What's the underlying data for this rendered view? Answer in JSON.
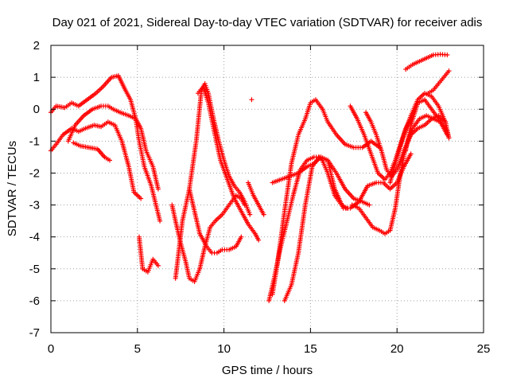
{
  "chart_data": {
    "type": "scatter",
    "title": "Day 021 of 2021, Sidereal Day-to-day VTEC variation (SDTVAR) for receiver adis",
    "xlabel": "GPS time / hours",
    "ylabel": "SDTVAR / TECUs",
    "xlim": [
      0,
      25
    ],
    "ylim": [
      -7,
      2
    ],
    "x_ticks": [
      "0",
      "5",
      "10",
      "15",
      "20",
      "25"
    ],
    "y_ticks": [
      "2",
      "1",
      "0",
      "-1",
      "-2",
      "-3",
      "-4",
      "-5",
      "-6",
      "-7"
    ],
    "grid": true,
    "legend": "none",
    "marker": "+",
    "color": "#ff0000",
    "series": [
      {
        "x": [
          0.0,
          0.3,
          0.7,
          1.2,
          1.6,
          2.0,
          2.5,
          2.9,
          3.3,
          3.7,
          4.1,
          4.5,
          4.8,
          5.2
        ],
        "y": [
          -1.3,
          -1.1,
          -0.8,
          -0.6,
          -0.7,
          -0.6,
          -0.5,
          -0.55,
          -0.4,
          -0.5,
          -1.0,
          -1.8,
          -2.6,
          -2.8
        ]
      },
      {
        "x": [
          0.0,
          0.3,
          0.8,
          1.2,
          1.6,
          2.1,
          2.6,
          3.0,
          3.5,
          3.9,
          4.3,
          4.6,
          4.9,
          5.1,
          5.4,
          5.8,
          6.3
        ],
        "y": [
          -0.1,
          0.1,
          0.05,
          0.2,
          0.1,
          0.3,
          0.5,
          0.7,
          1.0,
          1.05,
          0.6,
          0.3,
          -0.3,
          -1.0,
          -1.8,
          -2.4,
          -3.5
        ]
      },
      {
        "x": [
          1.0,
          1.4,
          1.9,
          2.4,
          2.9,
          3.3,
          3.6,
          4.0,
          4.5,
          4.9,
          5.2,
          5.5,
          5.9,
          6.2
        ],
        "y": [
          -1.0,
          -0.5,
          -0.2,
          0.0,
          0.1,
          0.1,
          0.0,
          -0.1,
          -0.2,
          -0.3,
          -0.6,
          -1.3,
          -1.8,
          -2.5
        ]
      },
      {
        "x": [
          1.3,
          1.7,
          2.2,
          2.7,
          3.1,
          3.4
        ],
        "y": [
          -1.05,
          -1.15,
          -1.2,
          -1.25,
          -1.5,
          -1.6
        ]
      },
      {
        "x": [
          5.1,
          5.3,
          5.6,
          5.9,
          6.2
        ],
        "y": [
          -4.0,
          -5.0,
          -5.1,
          -4.7,
          -4.9
        ]
      },
      {
        "x": [
          7.0,
          7.2,
          7.5,
          7.8,
          8.0,
          8.3,
          8.6,
          8.9,
          9.2,
          9.5,
          9.9,
          10.3,
          10.7,
          11.0,
          11.2
        ],
        "y": [
          -3.0,
          -3.5,
          -4.2,
          -4.8,
          -5.3,
          -5.4,
          -5.0,
          -4.3,
          -3.7,
          -3.5,
          -3.3,
          -3.0,
          -2.7,
          -2.8,
          -3.0
        ]
      },
      {
        "x": [
          7.2,
          7.6,
          8.0,
          8.4,
          8.7,
          8.9,
          9.1,
          9.4,
          9.7,
          10.0,
          10.3,
          10.6,
          10.9,
          11.2,
          11.5
        ],
        "y": [
          -5.3,
          -3.5,
          -2.5,
          -1.0,
          0.6,
          0.8,
          0.5,
          -0.3,
          -1.0,
          -1.6,
          -2.1,
          -2.4,
          -2.6,
          -2.9,
          -3.3
        ]
      },
      {
        "x": [
          8.0,
          8.3,
          8.6,
          9.0,
          9.3,
          9.6,
          9.9,
          10.3,
          10.7,
          11.0
        ],
        "y": [
          -2.5,
          -3.2,
          -3.9,
          -4.3,
          -4.5,
          -4.5,
          -4.4,
          -4.4,
          -4.3,
          -4.0
        ]
      },
      {
        "x": [
          8.5,
          8.8,
          9.1,
          9.4,
          9.8,
          10.2,
          10.6,
          11.0,
          11.4,
          11.8,
          12.0
        ],
        "y": [
          0.5,
          0.7,
          0.2,
          -0.6,
          -1.6,
          -2.2,
          -2.8,
          -3.2,
          -3.6,
          -3.9,
          -4.1
        ]
      },
      {
        "x": [
          11.4,
          11.7,
          12.0,
          12.3
        ],
        "y": [
          -2.3,
          -2.7,
          -3.0,
          -3.3
        ]
      },
      {
        "x": [
          11.6
        ],
        "y": [
          0.3
        ]
      },
      {
        "x": [
          12.6,
          12.9,
          13.2,
          13.6,
          14.0,
          14.4,
          14.8,
          15.2,
          15.6,
          16.0,
          16.4,
          16.8,
          17.1
        ],
        "y": [
          -6.0,
          -5.3,
          -4.5,
          -3.6,
          -2.7,
          -1.9,
          -1.6,
          -1.5,
          -1.5,
          -2.0,
          -2.7,
          -3.0,
          -3.1
        ]
      },
      {
        "x": [
          12.8,
          13.1,
          13.5,
          13.9,
          14.3,
          14.7,
          15.0,
          15.3,
          15.7,
          16.0,
          16.5,
          17.0,
          17.5,
          18.0,
          18.5,
          19.0
        ],
        "y": [
          -5.8,
          -4.8,
          -3.2,
          -1.7,
          -0.8,
          -0.3,
          0.2,
          0.3,
          0.0,
          -0.4,
          -0.8,
          -1.1,
          -1.2,
          -1.2,
          -1.0,
          -1.2
        ]
      },
      {
        "x": [
          12.8,
          13.3,
          13.8,
          14.3,
          14.8,
          15.2,
          15.6,
          16.0,
          16.5,
          17.0,
          17.5,
          18.0,
          18.4
        ],
        "y": [
          -2.3,
          -2.2,
          -2.1,
          -2.0,
          -1.8,
          -1.7,
          -1.5,
          -1.6,
          -2.0,
          -2.5,
          -2.8,
          -2.9,
          -3.0
        ]
      },
      {
        "x": [
          13.5,
          13.9,
          14.3,
          14.7,
          15.1,
          15.5,
          16.0,
          16.4,
          16.9,
          17.3,
          17.8,
          18.3,
          18.8,
          19.2,
          19.6,
          20.0,
          20.4,
          20.8
        ],
        "y": [
          -6.0,
          -5.5,
          -4.5,
          -3.0,
          -1.8,
          -1.5,
          -1.6,
          -2.5,
          -3.1,
          -3.1,
          -2.9,
          -2.4,
          -2.3,
          -2.3,
          -2.5,
          -2.3,
          -1.8,
          -1.4
        ]
      },
      {
        "x": [
          17.3,
          17.7,
          18.1,
          18.5,
          18.9,
          19.3,
          19.6,
          19.9,
          20.2,
          20.5,
          20.8
        ],
        "y": [
          0.1,
          -0.3,
          -0.8,
          -1.4,
          -2.0,
          -2.2,
          -2.0,
          -1.6,
          -1.1,
          -0.6,
          -0.3
        ]
      },
      {
        "x": [
          18.2,
          18.5,
          18.8,
          19.1,
          19.4,
          19.7,
          20.0,
          20.4,
          20.8,
          21.2,
          21.6,
          22.0,
          22.4,
          22.8
        ],
        "y": [
          -0.1,
          -0.4,
          -0.8,
          -1.3,
          -1.9,
          -2.1,
          -1.9,
          -1.3,
          -0.8,
          -0.6,
          -0.5,
          -0.3,
          -0.2,
          -0.4
        ]
      },
      {
        "x": [
          17.4,
          17.8,
          18.2,
          18.6,
          19.0,
          19.3,
          19.6,
          19.9,
          20.2,
          20.5,
          20.9,
          21.3,
          21.7,
          22.1,
          22.5,
          22.9
        ],
        "y": [
          -3.0,
          -3.1,
          -3.4,
          -3.7,
          -3.8,
          -3.9,
          -3.8,
          -3.1,
          -2.0,
          -1.2,
          -0.6,
          -0.3,
          -0.2,
          -0.3,
          -0.4,
          -0.8
        ]
      },
      {
        "x": [
          19.6,
          20.0,
          20.4,
          20.8,
          21.2,
          21.6,
          22.0,
          22.4,
          22.8,
          23.0
        ],
        "y": [
          -2.3,
          -1.5,
          -0.8,
          -0.2,
          0.3,
          0.5,
          0.4,
          0.1,
          -0.4,
          -0.9
        ]
      },
      {
        "x": [
          20.5,
          20.8,
          21.2,
          21.6,
          22.0,
          22.4,
          22.8,
          23.0
        ],
        "y": [
          -1.3,
          -0.5,
          0.2,
          0.3,
          0.0,
          -0.3,
          -0.6,
          -0.9
        ]
      },
      {
        "x": [
          20.5,
          20.9,
          21.3,
          21.7,
          22.1,
          22.5,
          22.9
        ],
        "y": [
          1.25,
          1.4,
          1.5,
          1.6,
          1.7,
          1.72,
          1.7
        ]
      },
      {
        "x": [
          21.8,
          22.1,
          22.4,
          22.7,
          23.0
        ],
        "y": [
          0.5,
          0.6,
          0.8,
          1.0,
          1.2
        ]
      }
    ]
  }
}
